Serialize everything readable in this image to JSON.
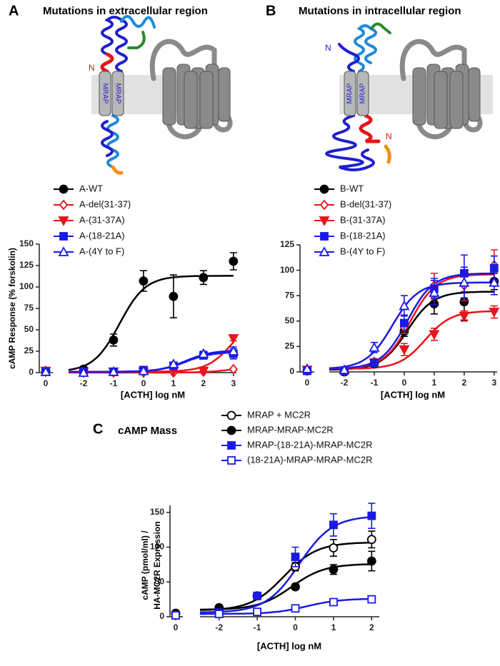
{
  "chart_data": [
    {
      "type": "line",
      "panel": "A",
      "title": "Mutations in extracellular region",
      "ylabel": "cAMP Response (% forskolin)",
      "xlabel": "[ACTH] log nM",
      "basal_tick": 0,
      "xlim": [
        -2.5,
        3.1
      ],
      "xticks": [
        -2,
        -1,
        0,
        1,
        2,
        3
      ],
      "ylim": [
        0,
        150
      ],
      "yticks": [
        0,
        25,
        50,
        75,
        100,
        125,
        150
      ],
      "x": [
        -2,
        -1,
        0,
        1,
        2,
        3
      ],
      "series": [
        {
          "name": "A-WT",
          "color": "#000000",
          "marker": "circle",
          "filled": true,
          "basal": 2,
          "values": [
            4,
            38,
            107,
            89,
            111,
            130
          ],
          "errors": [
            2,
            7,
            12,
            25,
            8,
            10
          ],
          "fit": {
            "bottom": 1,
            "top": 113,
            "log_ec50": -0.8
          }
        },
        {
          "name": "A-del(31-37)",
          "color": "#e8141c",
          "marker": "diamond",
          "filled": false,
          "basal": 1,
          "values": [
            0,
            0,
            0,
            0,
            1,
            4
          ],
          "errors": [
            0,
            0,
            0,
            0,
            0,
            1
          ],
          "fit": {
            "bottom": 0,
            "top": 8,
            "log_ec50": 3.0
          }
        },
        {
          "name": "A-(31-37A)",
          "color": "#e8141c",
          "marker": "triangle-down",
          "filled": true,
          "basal": 2,
          "values": [
            1,
            1,
            1,
            2,
            2,
            40
          ],
          "errors": [
            0,
            0,
            0,
            0,
            0,
            3
          ],
          "fit": {
            "bottom": 1,
            "top": 70,
            "log_ec50": 3.0
          }
        },
        {
          "name": "A-(18-21A)",
          "color": "#1a1ae6",
          "marker": "square",
          "filled": true,
          "basal": 1,
          "values": [
            1,
            1,
            3,
            8,
            20,
            22
          ],
          "errors": [
            0,
            0,
            1,
            2,
            3,
            6
          ],
          "fit": {
            "bottom": 1,
            "top": 24,
            "log_ec50": 1.4
          }
        },
        {
          "name": "A-(4Y to F)",
          "color": "#1a1ae6",
          "marker": "triangle",
          "filled": false,
          "basal": 1,
          "values": [
            0,
            1,
            2,
            10,
            22,
            25
          ],
          "errors": [
            0,
            0,
            1,
            2,
            3,
            5
          ],
          "fit": {
            "bottom": 1,
            "top": 26,
            "log_ec50": 1.4
          }
        }
      ]
    },
    {
      "type": "line",
      "panel": "B",
      "title": "Mutations in intracellular region",
      "xlabel": "[ACTH] log nM",
      "basal_tick": 0,
      "xlim": [
        -2.5,
        3.1
      ],
      "xticks": [
        -2,
        -1,
        0,
        1,
        2,
        3
      ],
      "ylim": [
        0,
        125
      ],
      "yticks": [
        0,
        25,
        50,
        75,
        100,
        125
      ],
      "x": [
        -2,
        -1,
        0,
        1,
        2,
        3
      ],
      "series": [
        {
          "name": "B-WT",
          "color": "#000000",
          "marker": "circle",
          "filled": true,
          "basal": 1,
          "values": [
            0,
            8,
            40,
            67,
            69,
            89
          ],
          "errors": [
            1,
            2,
            5,
            10,
            18,
            8
          ],
          "fit": {
            "bottom": 2,
            "top": 79,
            "log_ec50": 0.1
          }
        },
        {
          "name": "B-del(31-37)",
          "color": "#e8141c",
          "marker": "diamond",
          "filled": false,
          "basal": 2,
          "values": [
            1,
            10,
            44,
            85,
            85,
            105
          ],
          "errors": [
            1,
            3,
            6,
            12,
            15,
            15
          ],
          "fit": {
            "bottom": 3,
            "top": 96,
            "log_ec50": 0.2
          }
        },
        {
          "name": "B-(31-37A)",
          "color": "#e8141c",
          "marker": "triangle-down",
          "filled": true,
          "basal": 2,
          "values": [
            1,
            9,
            22,
            37,
            55,
            59
          ],
          "errors": [
            1,
            2,
            6,
            6,
            5,
            6
          ],
          "fit": {
            "bottom": 3,
            "top": 60,
            "log_ec50": 0.7
          }
        },
        {
          "name": "B-(18-21A)",
          "color": "#1a1ae6",
          "marker": "square",
          "filled": true,
          "basal": 1,
          "values": [
            1,
            9,
            48,
            82,
            97,
            102
          ],
          "errors": [
            1,
            2,
            8,
            10,
            18,
            12
          ],
          "fit": {
            "bottom": 3,
            "top": 97,
            "log_ec50": 0.1
          }
        },
        {
          "name": "B-(4Y to F)",
          "color": "#1a1ae6",
          "marker": "triangle",
          "filled": false,
          "basal": 3,
          "values": [
            2,
            24,
            65,
            78,
            88,
            88
          ],
          "errors": [
            1,
            5,
            10,
            12,
            15,
            12
          ],
          "fit": {
            "bottom": 3,
            "top": 88,
            "log_ec50": -0.4
          }
        }
      ]
    },
    {
      "type": "line",
      "panel": "C",
      "title": "cAMP Mass",
      "ylabel": [
        "cAMP (pmol/ml) /",
        "HA-MC2R Expression"
      ],
      "xlabel": "[ACTH] log nM",
      "basal_tick": 0,
      "xlim": [
        -2.5,
        2.2
      ],
      "xticks": [
        -2,
        -1,
        0,
        1,
        2
      ],
      "ylim": [
        0,
        160
      ],
      "yticks": [
        0,
        50,
        100,
        150
      ],
      "x": [
        -2,
        -1,
        0,
        1,
        2
      ],
      "series": [
        {
          "name": "MRAP + MC2R",
          "color": "#000000",
          "marker": "circle",
          "filled": false,
          "basal": 5,
          "values": [
            8,
            30,
            72,
            99,
            111
          ],
          "errors": [
            1,
            3,
            6,
            12,
            12
          ],
          "fit": {
            "bottom": 9,
            "top": 107,
            "log_ec50": -0.3
          }
        },
        {
          "name": "MRAP-MRAP-MC2R",
          "color": "#000000",
          "marker": "circle",
          "filled": true,
          "basal": 5,
          "values": [
            13,
            30,
            43,
            68,
            80
          ],
          "errors": [
            1,
            3,
            4,
            7,
            14
          ],
          "fit": {
            "bottom": 10,
            "top": 76,
            "log_ec50": -0.1
          }
        },
        {
          "name": "MRAP-(18-21A)-MRAP-MC2R",
          "color": "#1a1ae6",
          "marker": "square",
          "filled": true,
          "basal": 2,
          "values": [
            6,
            30,
            86,
            132,
            145
          ],
          "errors": [
            1,
            4,
            14,
            16,
            18
          ],
          "fit": {
            "bottom": 6,
            "top": 145,
            "log_ec50": 0.1
          }
        },
        {
          "name": "(18-21A)-MRAP-MRAP-MC2R",
          "color": "#1a1ae6",
          "marker": "square",
          "filled": false,
          "basal": 2,
          "values": [
            4,
            7,
            12,
            21,
            25
          ],
          "errors": [
            0,
            1,
            1,
            3,
            3
          ],
          "fit": {
            "bottom": 4,
            "top": 26,
            "log_ec50": 0.3
          }
        }
      ]
    }
  ],
  "diagrams": [
    {
      "n_labels": [
        "N"
      ],
      "mrap_labels": [
        "MRAP",
        "MRAP"
      ]
    },
    {
      "n_labels": [
        "N",
        "N"
      ],
      "mrap_labels": [
        "MRAP",
        "MRAP"
      ]
    }
  ]
}
